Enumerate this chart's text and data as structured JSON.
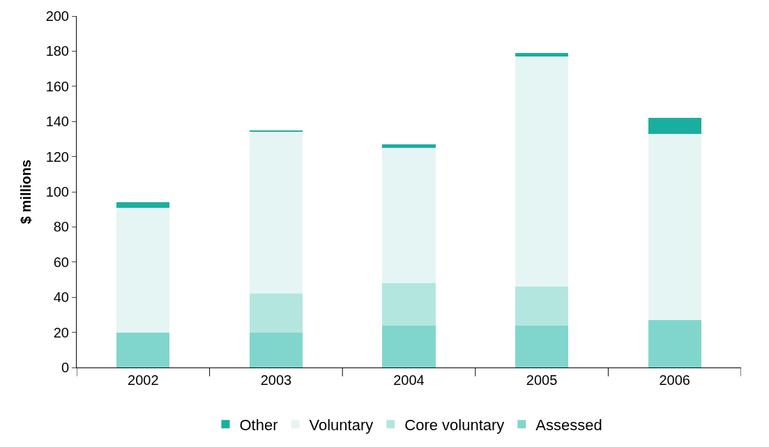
{
  "chart_data": {
    "type": "bar",
    "stacked": true,
    "ylabel": "$ millions",
    "categories": [
      "2002",
      "2003",
      "2004",
      "2005",
      "2006"
    ],
    "series": [
      {
        "name": "Assessed",
        "color": "#80d6cc",
        "values": [
          20,
          20,
          24,
          24,
          27
        ]
      },
      {
        "name": "Core voluntary",
        "color": "#b3e6df",
        "values": [
          null,
          22,
          24,
          22,
          null
        ]
      },
      {
        "name": "Voluntary",
        "color": "#e5f5f3",
        "values": [
          71,
          92,
          77,
          131,
          106
        ]
      },
      {
        "name": "Other",
        "color": "#1aae9f",
        "values": [
          3,
          1,
          2,
          2,
          9
        ]
      }
    ],
    "ylim": [
      0,
      200
    ],
    "yticks": [
      0,
      20,
      40,
      60,
      80,
      100,
      120,
      140,
      160,
      180,
      200
    ],
    "legend": "bottom"
  }
}
